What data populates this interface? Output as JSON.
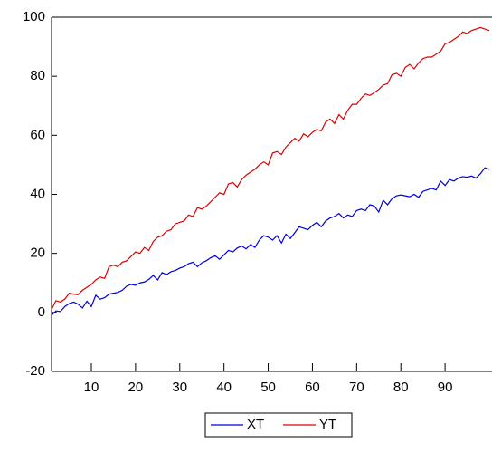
{
  "chart_data": {
    "type": "line",
    "x": [
      1,
      2,
      3,
      4,
      5,
      6,
      7,
      8,
      9,
      10,
      11,
      12,
      13,
      14,
      15,
      16,
      17,
      18,
      19,
      20,
      21,
      22,
      23,
      24,
      25,
      26,
      27,
      28,
      29,
      30,
      31,
      32,
      33,
      34,
      35,
      36,
      37,
      38,
      39,
      40,
      41,
      42,
      43,
      44,
      45,
      46,
      47,
      48,
      49,
      50,
      51,
      52,
      53,
      54,
      55,
      56,
      57,
      58,
      59,
      60,
      61,
      62,
      63,
      64,
      65,
      66,
      67,
      68,
      69,
      70,
      71,
      72,
      73,
      74,
      75,
      76,
      77,
      78,
      79,
      80,
      81,
      82,
      83,
      84,
      85,
      86,
      87,
      88,
      89,
      90,
      91,
      92,
      93,
      94,
      95,
      96,
      97,
      98,
      99,
      100
    ],
    "series": [
      {
        "name": "XT",
        "color": "#0000dd",
        "values": [
          -1.0,
          0.5,
          0.3,
          2.0,
          3.0,
          3.5,
          2.8,
          1.5,
          3.8,
          2.0,
          5.8,
          4.5,
          5.0,
          6.2,
          6.5,
          6.8,
          7.5,
          8.9,
          9.5,
          9.2,
          10.0,
          10.3,
          11.2,
          12.5,
          11.0,
          13.5,
          12.8,
          13.8,
          14.2,
          15.0,
          15.5,
          16.5,
          17.0,
          15.5,
          16.8,
          17.5,
          18.5,
          19.2,
          18.0,
          19.5,
          21.0,
          20.5,
          21.8,
          22.5,
          21.5,
          23.0,
          22.0,
          24.5,
          26.0,
          25.5,
          24.5,
          26.0,
          23.5,
          26.5,
          25.0,
          27.0,
          29.0,
          28.5,
          28.0,
          29.5,
          30.5,
          29.0,
          31.0,
          32.0,
          32.5,
          33.5,
          32.0,
          33.0,
          32.5,
          34.5,
          35.0,
          34.5,
          36.5,
          36.0,
          34.0,
          38.0,
          36.5,
          38.5,
          39.5,
          39.8,
          39.5,
          39.2,
          40.0,
          39.0,
          41.0,
          41.5,
          42.0,
          41.5,
          44.5,
          43.0,
          45.0,
          44.5,
          45.5,
          46.0,
          45.8,
          46.2,
          45.5,
          47.0,
          49.0,
          48.5
        ]
      },
      {
        "name": "YT",
        "color": "#dd0000",
        "values": [
          1.0,
          4.0,
          3.5,
          4.5,
          6.5,
          6.2,
          6.0,
          7.5,
          8.5,
          9.5,
          11.0,
          12.0,
          11.5,
          15.5,
          16.0,
          15.5,
          17.0,
          17.5,
          19.0,
          20.5,
          20.0,
          22.0,
          21.0,
          24.0,
          25.5,
          26.0,
          27.5,
          28.0,
          30.0,
          30.5,
          31.0,
          33.0,
          32.5,
          35.5,
          35.0,
          36.0,
          37.5,
          39.0,
          40.5,
          40.0,
          43.5,
          44.0,
          42.5,
          45.0,
          46.5,
          47.5,
          48.5,
          50.0,
          51.0,
          50.0,
          54.0,
          54.5,
          53.5,
          56.0,
          57.5,
          59.0,
          58.0,
          60.5,
          59.5,
          61.0,
          62.0,
          61.5,
          64.5,
          65.5,
          64.0,
          67.0,
          65.5,
          68.5,
          70.5,
          70.5,
          72.5,
          74.0,
          73.5,
          74.5,
          75.5,
          77.0,
          77.5,
          80.5,
          81.0,
          80.0,
          83.0,
          84.0,
          82.5,
          84.5,
          86.0,
          86.5,
          86.5,
          87.5,
          88.5,
          91.0,
          91.5,
          92.5,
          93.5,
          95.0,
          94.5,
          95.5,
          96.0,
          96.5,
          96.0,
          95.5
        ]
      }
    ],
    "xlim": [
      1,
      100
    ],
    "xticks": [
      10,
      20,
      30,
      40,
      50,
      60,
      70,
      80,
      90
    ],
    "ylim": [
      -20,
      100
    ],
    "yticks": [
      -20,
      0,
      20,
      40,
      60,
      80,
      100
    ],
    "grid": false,
    "legend": "bottom"
  }
}
